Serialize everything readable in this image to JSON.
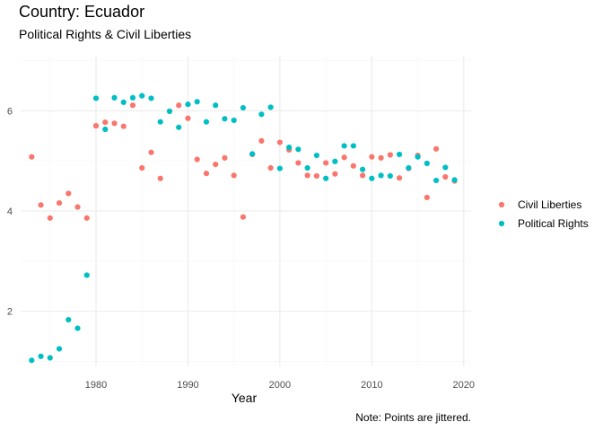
{
  "colors": {
    "civil": "#F8766D",
    "political": "#00BFC4",
    "grid_major": "#EBEBEB",
    "grid_minor": "#F5F5F5"
  },
  "chart_data": {
    "type": "scatter",
    "title": "Country: Ecuador",
    "subtitle": "Political Rights & Civil Liberties",
    "xlabel": "Year",
    "ylabel": "",
    "caption": "Note: Points are jittered.",
    "xlim": [
      1971.8,
      2020.8
    ],
    "ylim": [
      0.9,
      7.1
    ],
    "x_ticks": [
      1980,
      1990,
      2000,
      2010,
      2020
    ],
    "y_ticks": [
      2,
      4,
      6
    ],
    "grid": true,
    "legend_position": "right",
    "series": [
      {
        "name": "Civil Liberties",
        "color": "#F8766D",
        "points": [
          [
            1973,
            5.08
          ],
          [
            1974,
            4.12
          ],
          [
            1975,
            3.86
          ],
          [
            1976,
            4.16
          ],
          [
            1977,
            4.35
          ],
          [
            1978,
            4.08
          ],
          [
            1979,
            3.86
          ],
          [
            1980,
            5.7
          ],
          [
            1981,
            5.77
          ],
          [
            1982,
            5.75
          ],
          [
            1983,
            5.69
          ],
          [
            1984,
            6.11
          ],
          [
            1985,
            4.86
          ],
          [
            1986,
            5.17
          ],
          [
            1987,
            4.65
          ],
          [
            1988,
            5.99
          ],
          [
            1989,
            6.11
          ],
          [
            1990,
            5.85
          ],
          [
            1991,
            5.03
          ],
          [
            1992,
            4.75
          ],
          [
            1993,
            4.93
          ],
          [
            1994,
            5.06
          ],
          [
            1995,
            4.71
          ],
          [
            1996,
            3.88
          ],
          [
            1997,
            5.13
          ],
          [
            1998,
            5.4
          ],
          [
            1999,
            4.86
          ],
          [
            2000,
            5.37
          ],
          [
            2001,
            5.22
          ],
          [
            2002,
            4.96
          ],
          [
            2003,
            4.71
          ],
          [
            2004,
            4.7
          ],
          [
            2005,
            4.96
          ],
          [
            2006,
            4.74
          ],
          [
            2007,
            5.07
          ],
          [
            2008,
            4.9
          ],
          [
            2009,
            4.71
          ],
          [
            2010,
            5.08
          ],
          [
            2011,
            5.06
          ],
          [
            2012,
            5.12
          ],
          [
            2013,
            4.66
          ],
          [
            2014,
            4.85
          ],
          [
            2015,
            5.11
          ],
          [
            2016,
            4.27
          ],
          [
            2017,
            5.24
          ],
          [
            2018,
            4.68
          ],
          [
            2019,
            4.6
          ]
        ]
      },
      {
        "name": "Political Rights",
        "color": "#00BFC4",
        "points": [
          [
            1973,
            1.02
          ],
          [
            1974,
            1.1
          ],
          [
            1975,
            1.07
          ],
          [
            1976,
            1.25
          ],
          [
            1977,
            1.83
          ],
          [
            1978,
            1.66
          ],
          [
            1979,
            2.72
          ],
          [
            1980,
            6.25
          ],
          [
            1981,
            5.63
          ],
          [
            1982,
            6.26
          ],
          [
            1983,
            6.17
          ],
          [
            1984,
            6.26
          ],
          [
            1985,
            6.3
          ],
          [
            1986,
            6.25
          ],
          [
            1987,
            5.78
          ],
          [
            1988,
            5.99
          ],
          [
            1989,
            5.67
          ],
          [
            1990,
            6.13
          ],
          [
            1991,
            6.18
          ],
          [
            1992,
            5.78
          ],
          [
            1993,
            6.11
          ],
          [
            1994,
            5.84
          ],
          [
            1995,
            5.81
          ],
          [
            1996,
            6.06
          ],
          [
            1997,
            5.14
          ],
          [
            1998,
            5.93
          ],
          [
            1999,
            6.07
          ],
          [
            2000,
            4.85
          ],
          [
            2001,
            5.27
          ],
          [
            2002,
            5.23
          ],
          [
            2003,
            4.86
          ],
          [
            2004,
            5.11
          ],
          [
            2005,
            4.65
          ],
          [
            2006,
            4.99
          ],
          [
            2007,
            5.3
          ],
          [
            2008,
            5.3
          ],
          [
            2009,
            4.83
          ],
          [
            2010,
            4.65
          ],
          [
            2011,
            4.71
          ],
          [
            2012,
            4.7
          ],
          [
            2013,
            5.13
          ],
          [
            2014,
            4.86
          ],
          [
            2015,
            5.08
          ],
          [
            2016,
            4.95
          ],
          [
            2017,
            4.61
          ],
          [
            2018,
            4.87
          ],
          [
            2019,
            4.62
          ]
        ]
      }
    ]
  }
}
